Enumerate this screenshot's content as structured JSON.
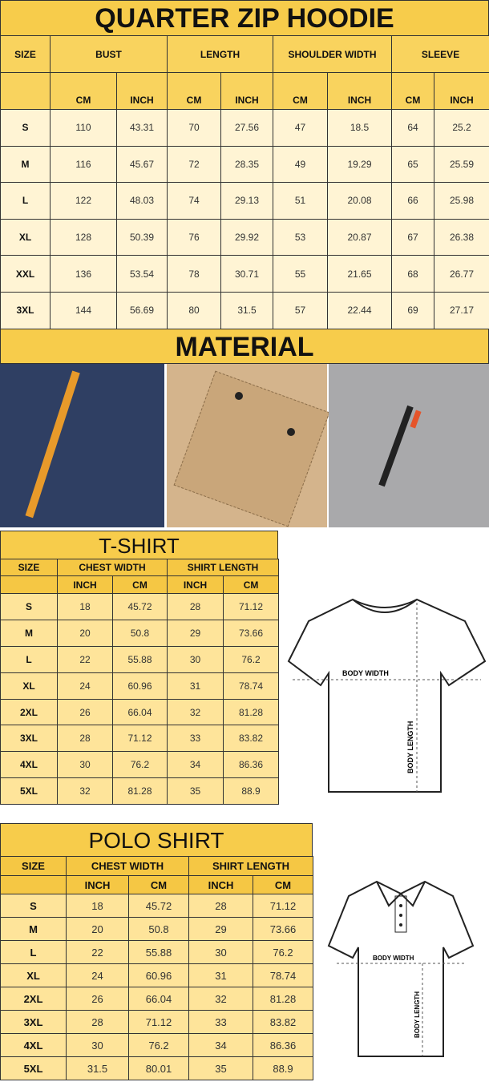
{
  "hoodie": {
    "title": "QUARTER ZIP HOODIE",
    "groups": [
      "SIZE",
      "BUST",
      "LENGTH",
      "SHOULDER WIDTH",
      "SLEEVE"
    ],
    "units": [
      "CM",
      "INCH",
      "CM",
      "INCH",
      "CM",
      "INCH",
      "CM",
      "INCH"
    ],
    "rows": [
      [
        "S",
        "110",
        "43.31",
        "70",
        "27.56",
        "47",
        "18.5",
        "64",
        "25.2"
      ],
      [
        "M",
        "116",
        "45.67",
        "72",
        "28.35",
        "49",
        "19.29",
        "65",
        "25.59"
      ],
      [
        "L",
        "122",
        "48.03",
        "74",
        "29.13",
        "51",
        "20.08",
        "66",
        "25.98"
      ],
      [
        "XL",
        "128",
        "50.39",
        "76",
        "29.92",
        "53",
        "20.87",
        "67",
        "26.38"
      ],
      [
        "XXL",
        "136",
        "53.54",
        "78",
        "30.71",
        "55",
        "21.65",
        "68",
        "26.77"
      ],
      [
        "3XL",
        "144",
        "56.69",
        "80",
        "31.5",
        "57",
        "22.44",
        "69",
        "27.17"
      ]
    ]
  },
  "material": {
    "title": "MATERIAL",
    "photos": [
      {
        "name": "navy-fabric-pocket-photo",
        "color": "#2f3f63"
      },
      {
        "name": "khaki-fabric-flap-pocket-photo",
        "color": "#d4b48c"
      },
      {
        "name": "grey-fabric-zip-pocket-photo",
        "color": "#a9a9ab"
      }
    ]
  },
  "tshirt": {
    "title": "T-SHIRT",
    "groups": [
      "SIZE",
      "CHEST WIDTH",
      "SHIRT LENGTH"
    ],
    "units": [
      "INCH",
      "CM",
      "INCH",
      "CM"
    ],
    "rows": [
      [
        "S",
        "18",
        "45.72",
        "28",
        "71.12"
      ],
      [
        "M",
        "20",
        "50.8",
        "29",
        "73.66"
      ],
      [
        "L",
        "22",
        "55.88",
        "30",
        "76.2"
      ],
      [
        "XL",
        "24",
        "60.96",
        "31",
        "78.74"
      ],
      [
        "2XL",
        "26",
        "66.04",
        "32",
        "81.28"
      ],
      [
        "3XL",
        "28",
        "71.12",
        "33",
        "83.82"
      ],
      [
        "4XL",
        "30",
        "76.2",
        "34",
        "86.36"
      ],
      [
        "5XL",
        "32",
        "81.28",
        "35",
        "88.9"
      ]
    ],
    "diagram": {
      "body_width": "BODY WIDTH",
      "body_length": "BODY LENGTH"
    }
  },
  "polo": {
    "title": "POLO SHIRT",
    "groups": [
      "SIZE",
      "CHEST WIDTH",
      "SHIRT LENGTH"
    ],
    "units": [
      "INCH",
      "CM",
      "INCH",
      "CM"
    ],
    "rows": [
      [
        "S",
        "18",
        "45.72",
        "28",
        "71.12"
      ],
      [
        "M",
        "20",
        "50.8",
        "29",
        "73.66"
      ],
      [
        "L",
        "22",
        "55.88",
        "30",
        "76.2"
      ],
      [
        "XL",
        "24",
        "60.96",
        "31",
        "78.74"
      ],
      [
        "2XL",
        "26",
        "66.04",
        "32",
        "81.28"
      ],
      [
        "3XL",
        "28",
        "71.12",
        "33",
        "83.82"
      ],
      [
        "4XL",
        "30",
        "76.2",
        "34",
        "86.36"
      ],
      [
        "5XL",
        "31.5",
        "80.01",
        "35",
        "88.9"
      ]
    ],
    "diagram": {
      "body_width": "BODY WIDTH",
      "body_length": "BODY LENGTH"
    }
  }
}
